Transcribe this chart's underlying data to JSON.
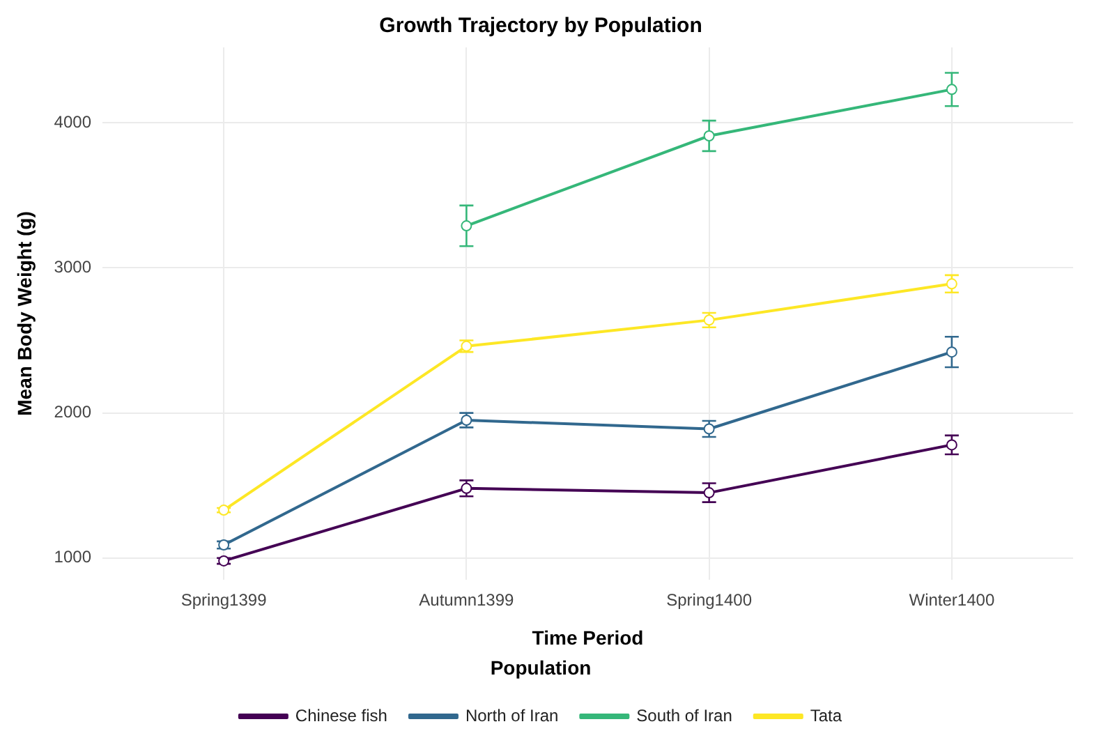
{
  "chart_data": {
    "type": "line",
    "title": "Growth Trajectory by Population",
    "xlabel": "Time Period",
    "ylabel": "Mean Body Weight (g)",
    "legend_title": "Population",
    "categories": [
      "Spring1399",
      "Autumn1399",
      "Spring1400",
      "Winter1400"
    ],
    "series": [
      {
        "name": "Chinese fish",
        "color": "#440154",
        "values": [
          980,
          1480,
          1450,
          1780
        ],
        "errors": [
          20,
          55,
          65,
          65
        ]
      },
      {
        "name": "North of Iran",
        "color": "#31688e",
        "values": [
          1090,
          1950,
          1890,
          2420
        ],
        "errors": [
          25,
          50,
          55,
          105
        ]
      },
      {
        "name": "South of Iran",
        "color": "#35b779",
        "values": [
          null,
          3290,
          3910,
          4230
        ],
        "errors": [
          null,
          140,
          105,
          115
        ]
      },
      {
        "name": "Tata",
        "color": "#fde725",
        "values": [
          1330,
          2460,
          2640,
          2890
        ],
        "errors": [
          15,
          40,
          50,
          60
        ]
      }
    ],
    "ylim": [
      850,
      4520
    ],
    "yticks": [
      1000,
      2000,
      3000,
      4000
    ],
    "grid": true,
    "legend": "bottom",
    "marker": "circle",
    "line_style": "solid"
  }
}
